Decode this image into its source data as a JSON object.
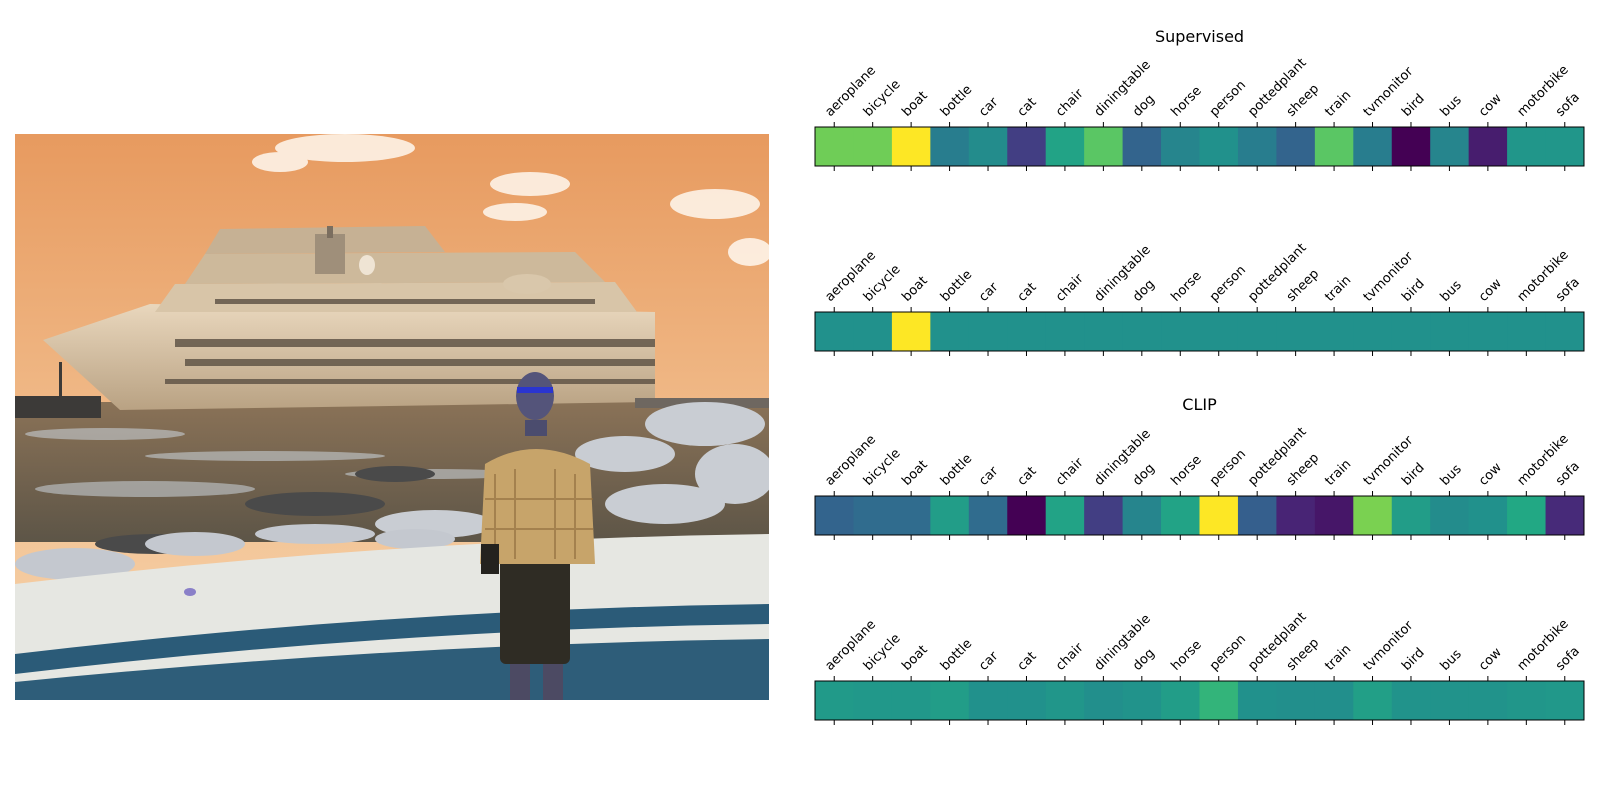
{
  "photo": {
    "description_icon": "cruise-ship-photo"
  },
  "chart_data": [
    {
      "type": "heatmap",
      "title": "Supervised",
      "categories": [
        "aeroplane",
        "bicycle",
        "boat",
        "bottle",
        "car",
        "cat",
        "chair",
        "diningtable",
        "dog",
        "horse",
        "person",
        "pottedplant",
        "sheep",
        "train",
        "tvmonitor",
        "bird",
        "bus",
        "cow",
        "motorbike",
        "sofa"
      ],
      "values": [
        0.78,
        0.78,
        1.0,
        0.42,
        0.48,
        0.18,
        0.58,
        0.74,
        0.32,
        0.45,
        0.5,
        0.42,
        0.32,
        0.74,
        0.42,
        0.0,
        0.45,
        0.08,
        0.52,
        0.52
      ],
      "colormap": "viridis",
      "grid": false
    },
    {
      "type": "heatmap",
      "title": "",
      "categories": [
        "aeroplane",
        "bicycle",
        "boat",
        "bottle",
        "car",
        "cat",
        "chair",
        "diningtable",
        "dog",
        "horse",
        "person",
        "pottedplant",
        "sheep",
        "train",
        "tvmonitor",
        "bird",
        "bus",
        "cow",
        "motorbike",
        "sofa"
      ],
      "values": [
        0.5,
        0.5,
        1.0,
        0.5,
        0.5,
        0.5,
        0.5,
        0.5,
        0.5,
        0.5,
        0.5,
        0.5,
        0.5,
        0.5,
        0.5,
        0.5,
        0.5,
        0.5,
        0.5,
        0.5
      ],
      "colormap": "viridis",
      "grid": false
    },
    {
      "type": "heatmap",
      "title": "CLIP",
      "categories": [
        "aeroplane",
        "bicycle",
        "boat",
        "bottle",
        "car",
        "cat",
        "chair",
        "diningtable",
        "dog",
        "horse",
        "person",
        "pottedplant",
        "sheep",
        "train",
        "tvmonitor",
        "bird",
        "bus",
        "cow",
        "motorbike",
        "sofa"
      ],
      "values": [
        0.32,
        0.35,
        0.35,
        0.55,
        0.35,
        0.0,
        0.58,
        0.18,
        0.45,
        0.58,
        1.0,
        0.3,
        0.1,
        0.06,
        0.8,
        0.55,
        0.48,
        0.5,
        0.6,
        0.12
      ],
      "colormap": "viridis",
      "grid": false
    },
    {
      "type": "heatmap",
      "title": "",
      "categories": [
        "aeroplane",
        "bicycle",
        "boat",
        "bottle",
        "car",
        "cat",
        "chair",
        "diningtable",
        "dog",
        "horse",
        "person",
        "pottedplant",
        "sheep",
        "train",
        "tvmonitor",
        "bird",
        "bus",
        "cow",
        "motorbike",
        "sofa"
      ],
      "values": [
        0.54,
        0.53,
        0.53,
        0.55,
        0.5,
        0.5,
        0.52,
        0.49,
        0.51,
        0.55,
        0.65,
        0.5,
        0.49,
        0.49,
        0.56,
        0.51,
        0.51,
        0.51,
        0.52,
        0.53
      ],
      "colormap": "viridis",
      "grid": false
    }
  ]
}
